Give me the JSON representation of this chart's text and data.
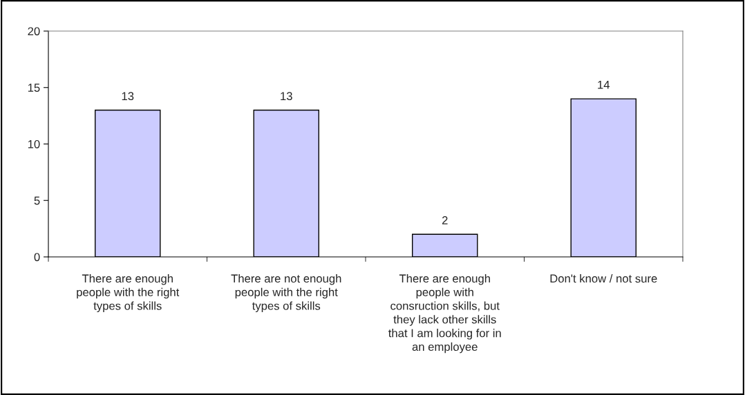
{
  "chart_data": {
    "type": "bar",
    "categories": [
      "There are enough\npeople with the right\ntypes of skills",
      "There are not enough\npeople with the right\ntypes of skills",
      "There are enough\npeople with\nconsruction skills, but\nthey lack other skills\nthat I am looking for in\nan employee",
      "Don't know / not sure"
    ],
    "values": [
      13,
      13,
      2,
      14
    ],
    "color": "#ccccff",
    "ylim": [
      0,
      20
    ],
    "yticks": [
      0,
      5,
      10,
      15,
      20
    ],
    "data_labels": true,
    "grid": false,
    "legend": false
  }
}
